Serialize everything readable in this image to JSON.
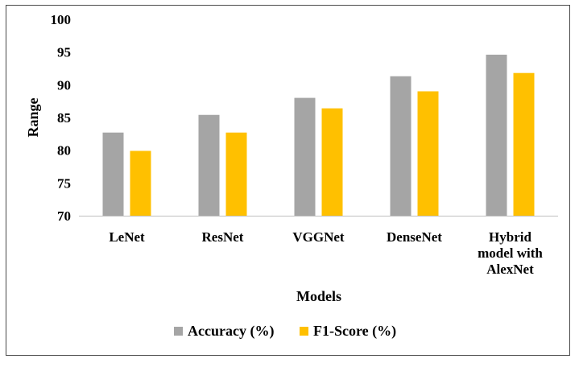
{
  "chart_data": {
    "type": "bar",
    "categories": [
      [
        "LeNet"
      ],
      [
        "ResNet"
      ],
      [
        "VGGNet"
      ],
      [
        "DenseNet"
      ],
      [
        "Hybrid",
        "model with",
        "AlexNet"
      ]
    ],
    "series": [
      {
        "name": "Accuracy (%)",
        "values": [
          82.7,
          85.4,
          88.0,
          91.3,
          94.6
        ],
        "color": "#a5a5a5"
      },
      {
        "name": "F1-Score (%)",
        "values": [
          79.9,
          82.7,
          86.4,
          89.0,
          91.8
        ],
        "color": "#ffc000"
      }
    ],
    "xlabel": "Models",
    "ylabel": "Range",
    "ylim": [
      70,
      100
    ],
    "yticks": [
      70,
      75,
      80,
      85,
      90,
      95,
      100
    ],
    "grid": false,
    "legend_position": "bottom"
  }
}
